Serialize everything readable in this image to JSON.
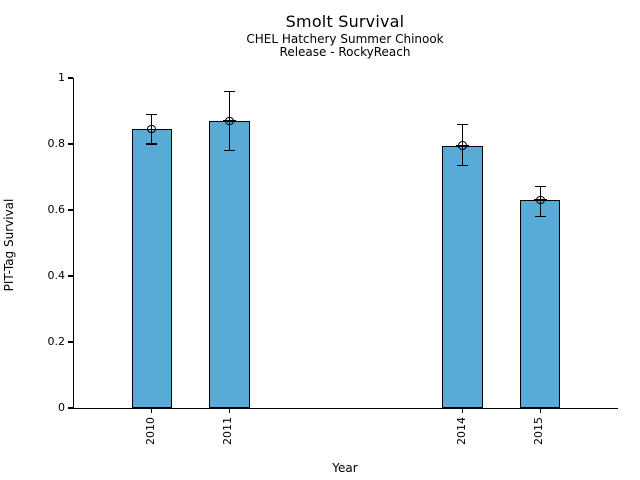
{
  "chart_data": {
    "type": "bar",
    "title": "Smolt Survival",
    "subtitle": [
      "CHEL Hatchery Summer Chinook",
      "Release - RockyReach"
    ],
    "xlabel": "Year",
    "ylabel": "PIT-Tag Survival",
    "categories": [
      2010,
      2011,
      2014,
      2015
    ],
    "xtick_labels": [
      "2010",
      "2011",
      "2014",
      "2015"
    ],
    "values": [
      0.845,
      0.87,
      0.795,
      0.63
    ],
    "error_low": [
      0.8,
      0.78,
      0.735,
      0.58
    ],
    "error_high": [
      0.89,
      0.96,
      0.86,
      0.67
    ],
    "xlim": [
      2009,
      2016
    ],
    "ylim": [
      0,
      1
    ],
    "yticks": [
      0,
      0.2,
      0.4,
      0.6,
      0.8,
      1
    ],
    "ytick_labels": [
      "0",
      "0.2",
      "0.4",
      "0.6",
      "0.8",
      "1"
    ],
    "bar_width_years": 0.52,
    "grid": false,
    "legend": "none",
    "colors": {
      "bar_fill": "#58ABD7",
      "bar_border": "#000000",
      "axis": "#000000",
      "text": "#000000",
      "background": "#ffffff"
    },
    "marker": "circle-plus",
    "error_bars": true
  }
}
